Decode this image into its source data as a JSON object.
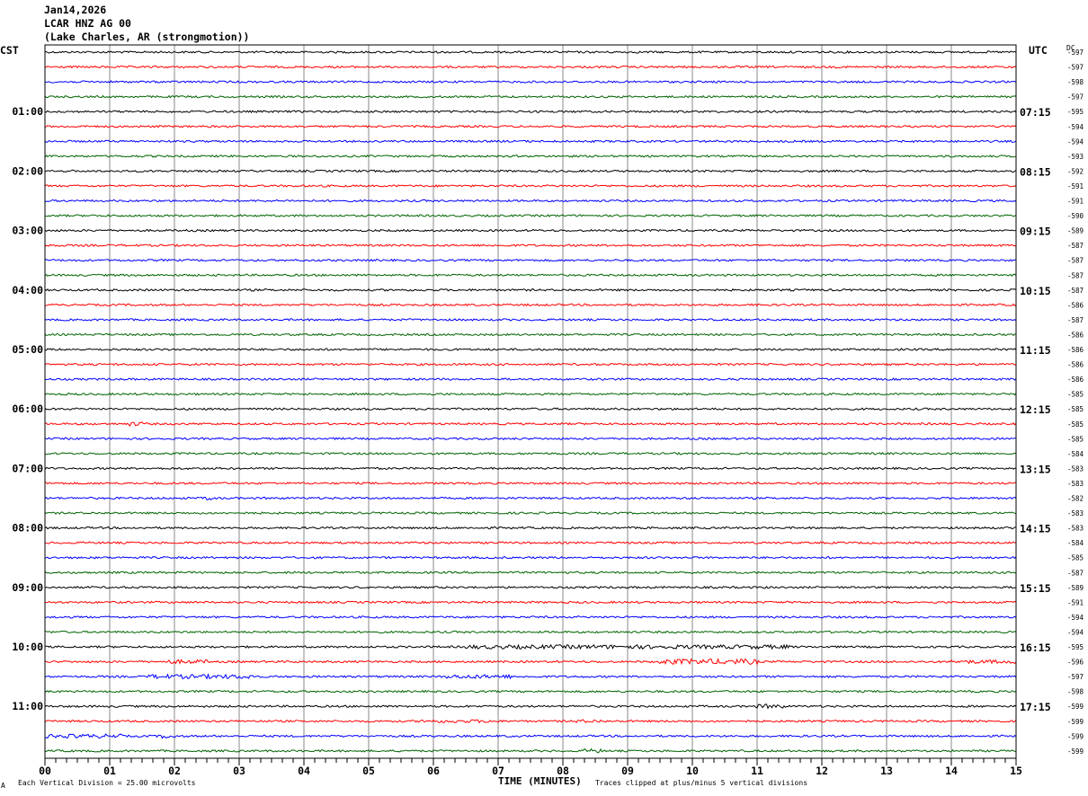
{
  "header": {
    "date": "Jan14,2026",
    "station": "LCAR HNZ AG 00",
    "location": "(Lake Charles, AR (strongmotion))"
  },
  "left_axis_title": "CST",
  "right_axis_title": "UTC",
  "dc_label": "DC",
  "footer": {
    "mark": "A",
    "scale_note": "Each Vertical Division =   25.00 microvolts",
    "clip_note": "Traces clipped at plus/minus 5 vertical divisions"
  },
  "chart_data": {
    "type": "line",
    "subtype": "helicorder",
    "xlabel": "TIME (MINUTES)",
    "xlim": [
      0,
      15
    ],
    "x_tick_labels": [
      "00",
      "01",
      "02",
      "03",
      "04",
      "05",
      "06",
      "07",
      "08",
      "09",
      "10",
      "11",
      "12",
      "13",
      "14",
      "15"
    ],
    "trace_count": 48,
    "trace_colors": [
      "#000000",
      "#ff0000",
      "#0000ff",
      "#006400"
    ],
    "left_hour_labels": [
      {
        "trace": 4,
        "label": "01:00"
      },
      {
        "trace": 8,
        "label": "02:00"
      },
      {
        "trace": 12,
        "label": "03:00"
      },
      {
        "trace": 16,
        "label": "04:00"
      },
      {
        "trace": 20,
        "label": "05:00"
      },
      {
        "trace": 24,
        "label": "06:00"
      },
      {
        "trace": 28,
        "label": "07:00"
      },
      {
        "trace": 32,
        "label": "08:00"
      },
      {
        "trace": 36,
        "label": "09:00"
      },
      {
        "trace": 40,
        "label": "10:00"
      },
      {
        "trace": 44,
        "label": "11:00"
      }
    ],
    "right_hour_labels": [
      {
        "trace": 4,
        "label": "07:15"
      },
      {
        "trace": 8,
        "label": "08:15"
      },
      {
        "trace": 12,
        "label": "09:15"
      },
      {
        "trace": 16,
        "label": "10:15"
      },
      {
        "trace": 20,
        "label": "11:15"
      },
      {
        "trace": 24,
        "label": "12:15"
      },
      {
        "trace": 28,
        "label": "13:15"
      },
      {
        "trace": 32,
        "label": "14:15"
      },
      {
        "trace": 36,
        "label": "15:15"
      },
      {
        "trace": 40,
        "label": "16:15"
      },
      {
        "trace": 44,
        "label": "17:15"
      }
    ],
    "dc_offsets": [
      "-597",
      "-597",
      "-598",
      "-597",
      "-595",
      "-594",
      "-594",
      "-593",
      "-592",
      "-591",
      "-591",
      "-590",
      "-589",
      "-587",
      "-587",
      "-587",
      "-587",
      "-586",
      "-587",
      "-586",
      "-586",
      "-586",
      "-586",
      "-585",
      "-585",
      "-585",
      "-585",
      "-584",
      "-583",
      "-583",
      "-582",
      "-583",
      "-583",
      "-584",
      "-585",
      "-587",
      "-589",
      "-591",
      "-594",
      "-594",
      "-595",
      "-596",
      "-597",
      "-598",
      "-599",
      "-599",
      "-599",
      "-599"
    ],
    "grid": true
  }
}
